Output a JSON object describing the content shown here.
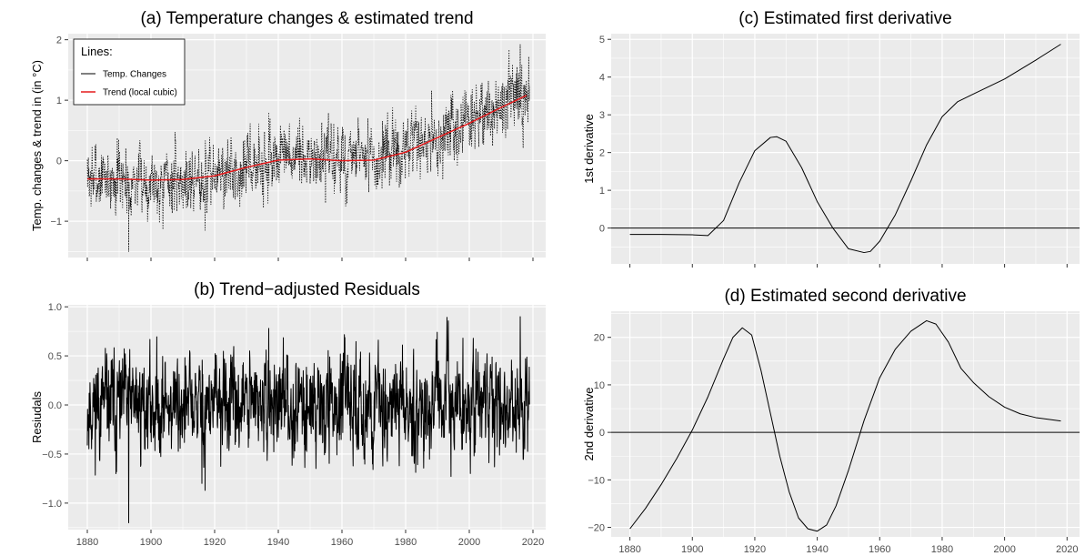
{
  "chart_data": [
    {
      "id": "a",
      "type": "line",
      "title": "(a) Temperature changes & estimated trend",
      "xlabel": "",
      "ylabel": "Temp. changes & trend in (in °C)",
      "xlim": [
        1874,
        2024
      ],
      "ylim": [
        -1.6,
        2.1
      ],
      "xticks": [
        1880,
        1900,
        1920,
        1940,
        1960,
        1980,
        2000,
        2020
      ],
      "show_x_tick_labels": false,
      "yticks": [
        -1,
        0,
        1,
        2
      ],
      "grid": true,
      "legend": {
        "title": "Lines:",
        "placement": "top-left"
      },
      "series": [
        {
          "name": "Temp. Changes",
          "style": "dotted",
          "color": "#000000",
          "kind": "noisy_monthly",
          "seed": 7,
          "amplitude": 0.33,
          "shocks": [
            [
              1893,
              -1.5
            ],
            [
              1917,
              -1.15
            ],
            [
              1937,
              0.8
            ],
            [
              2016,
              1.92
            ],
            [
              2015,
              1.55
            ],
            [
              1998,
              1.05
            ]
          ],
          "x": [
            1880,
            1890,
            1900,
            1910,
            1920,
            1930,
            1940,
            1950,
            1960,
            1970,
            1980,
            1990,
            2000,
            2010,
            2018
          ],
          "y": [
            -0.28,
            -0.29,
            -0.33,
            -0.32,
            -0.25,
            -0.1,
            0.02,
            0.03,
            0.0,
            0.01,
            0.14,
            0.38,
            0.62,
            0.88,
            1.08
          ]
        },
        {
          "name": "Trend (local cubic)",
          "style": "solid",
          "color": "#e41a1c",
          "x": [
            1880,
            1890,
            1900,
            1910,
            1920,
            1930,
            1940,
            1950,
            1960,
            1970,
            1980,
            1990,
            2000,
            2010,
            2018
          ],
          "y": [
            -0.3,
            -0.3,
            -0.32,
            -0.31,
            -0.25,
            -0.11,
            0.01,
            0.03,
            0.0,
            0.01,
            0.14,
            0.38,
            0.62,
            0.88,
            1.08
          ]
        }
      ]
    },
    {
      "id": "b",
      "type": "line",
      "title": "(b) Trend−adjusted Residuals",
      "xlabel": "",
      "ylabel": "Resiudals",
      "xlim": [
        1874,
        2024
      ],
      "ylim": [
        -1.27,
        1.02
      ],
      "xticks": [
        1880,
        1900,
        1920,
        1940,
        1960,
        1980,
        2000,
        2020
      ],
      "show_x_tick_labels": true,
      "yticks": [
        -1.0,
        -0.5,
        0.0,
        0.5,
        1.0
      ],
      "ytick_labels": [
        "−1.0",
        "−0.5",
        "0.0",
        "0.5",
        "1.0"
      ],
      "grid": true,
      "series": [
        {
          "style": "solid",
          "color": "#000000",
          "kind": "noisy_monthly",
          "seed": 11,
          "amplitude": 0.3,
          "shocks": [
            [
              1893,
              -1.2
            ],
            [
              1917,
              -0.87
            ],
            [
              1916,
              -0.8
            ],
            [
              2016,
              0.9
            ],
            [
              1937,
              0.78
            ],
            [
              1998,
              0.68
            ],
            [
              1889,
              -0.7
            ],
            [
              1978,
              -0.62
            ]
          ],
          "x": [
            1880,
            2018
          ],
          "y": [
            0,
            0
          ]
        }
      ]
    },
    {
      "id": "c",
      "type": "line",
      "title": "(c) Estimated first derivative",
      "xlabel": "",
      "ylabel": "1st derivative",
      "xlim": [
        1874,
        2024
      ],
      "ylim": [
        -0.95,
        5.15
      ],
      "xticks": [
        1880,
        1900,
        1920,
        1940,
        1960,
        1980,
        2000,
        2020
      ],
      "show_x_tick_labels": false,
      "yticks": [
        0,
        1,
        2,
        3,
        4,
        5
      ],
      "grid": true,
      "hline": 0,
      "series": [
        {
          "style": "solid",
          "color": "#000000",
          "x": [
            1880,
            1890,
            1900,
            1905,
            1910,
            1915,
            1920,
            1925,
            1927,
            1930,
            1935,
            1940,
            1945,
            1950,
            1955,
            1957,
            1960,
            1965,
            1970,
            1975,
            1980,
            1985,
            1990,
            2000,
            2010,
            2018
          ],
          "y": [
            -0.17,
            -0.17,
            -0.18,
            -0.2,
            0.2,
            1.2,
            2.05,
            2.4,
            2.42,
            2.3,
            1.6,
            0.7,
            0.0,
            -0.55,
            -0.65,
            -0.62,
            -0.35,
            0.35,
            1.25,
            2.2,
            2.95,
            3.35,
            3.55,
            3.95,
            4.45,
            4.87
          ]
        }
      ]
    },
    {
      "id": "d",
      "type": "line",
      "title": "(d) Estimated second derivative",
      "xlabel": "",
      "ylabel": "2nd derivative",
      "xlim": [
        1874,
        2024
      ],
      "ylim": [
        -22,
        25.5
      ],
      "xticks": [
        1880,
        1900,
        1920,
        1940,
        1960,
        1980,
        2000,
        2020
      ],
      "show_x_tick_labels": true,
      "yticks": [
        -20,
        -10,
        0,
        10,
        20
      ],
      "ytick_labels": [
        "−20",
        "−10",
        "0",
        "10",
        "20"
      ],
      "grid": true,
      "hline": 0,
      "series": [
        {
          "style": "solid",
          "color": "#000000",
          "x": [
            1880,
            1885,
            1890,
            1895,
            1900,
            1905,
            1910,
            1913,
            1916,
            1919,
            1922,
            1925,
            1928,
            1931,
            1934,
            1937,
            1940,
            1943,
            1946,
            1950,
            1955,
            1960,
            1965,
            1970,
            1975,
            1978,
            1982,
            1986,
            1990,
            1995,
            2000,
            2005,
            2010,
            2018
          ],
          "y": [
            -20.3,
            -16.0,
            -11.0,
            -5.5,
            0.5,
            7.5,
            15.5,
            20.0,
            22.0,
            20.5,
            13.0,
            4.0,
            -5.0,
            -12.5,
            -18.0,
            -20.3,
            -20.8,
            -19.5,
            -15.5,
            -8.0,
            2.5,
            11.5,
            17.5,
            21.3,
            23.5,
            22.8,
            19.0,
            13.5,
            10.5,
            7.5,
            5.3,
            3.9,
            3.1,
            2.4
          ]
        }
      ]
    }
  ]
}
